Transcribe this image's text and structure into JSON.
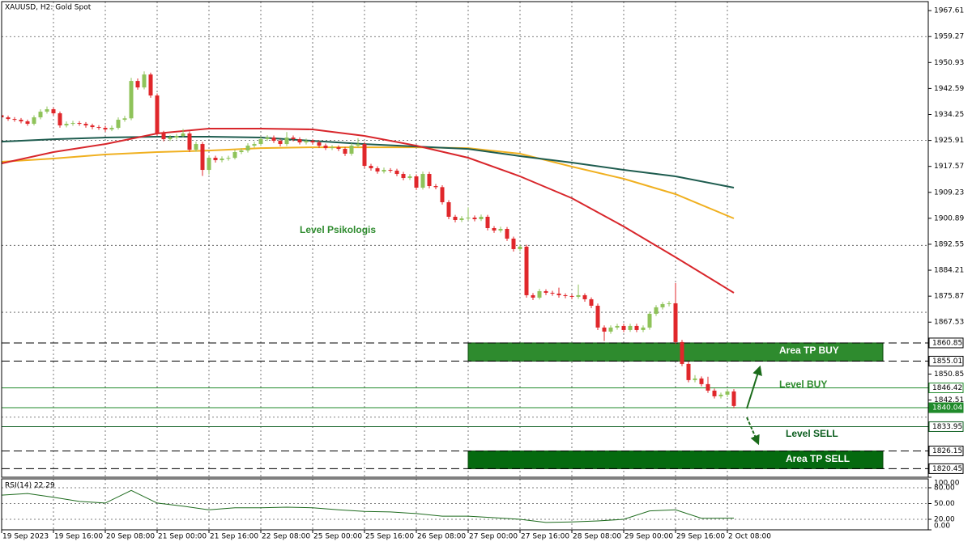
{
  "chart_data": {
    "type": "candlestick",
    "title": "XAUUSD, H2:  Gold Spot",
    "xlim": [
      0,
      143
    ],
    "xticks": [
      {
        "value": 0,
        "label": "19 Sep 2023"
      },
      {
        "value": 8,
        "label": "19 Sep 16:00"
      },
      {
        "value": 16,
        "label": "20 Sep 08:00"
      },
      {
        "value": 24,
        "label": "21 Sep 00:00"
      },
      {
        "value": 32,
        "label": "21 Sep 16:00"
      },
      {
        "value": 40,
        "label": "22 Sep 08:00"
      },
      {
        "value": 48,
        "label": "25 Sep 00:00"
      },
      {
        "value": 56,
        "label": "25 Sep 16:00"
      },
      {
        "value": 64,
        "label": "26 Sep 08:00"
      },
      {
        "value": 72,
        "label": "27 Sep 00:00"
      },
      {
        "value": 80,
        "label": "27 Sep 16:00"
      },
      {
        "value": 88,
        "label": "28 Sep 08:00"
      },
      {
        "value": 96,
        "label": "29 Sep 00:00"
      },
      {
        "value": 104,
        "label": "29 Sep 16:00"
      },
      {
        "value": 112,
        "label": "2 Oct 08:00"
      }
    ],
    "ylim": [
      1817.7,
      1970.5
    ],
    "yticks": [
      1967.61,
      1959.27,
      1950.93,
      1942.59,
      1934.25,
      1925.91,
      1917.57,
      1909.23,
      1900.89,
      1892.55,
      1884.21,
      1875.87,
      1867.53,
      1850.85,
      1842.51
    ],
    "up_color": "#8fc35a",
    "down_color": "#e0272b",
    "open": [
      1934.0,
      1933.32,
      1932.8,
      1932.55,
      1932.03,
      1931.25,
      1933.32,
      1935.14,
      1935.92,
      1934.62,
      1930.73,
      1931.25,
      1931.51,
      1931.25,
      1930.73,
      1930.21,
      1929.95,
      1929.43,
      1929.95,
      1932.55,
      1933.0,
      1945.01,
      1942.93,
      1947.09,
      1940.34,
      1928.13,
      1926.31,
      1926.83,
      1927.35,
      1928.13,
      1922.93,
      1924.75,
      1916.44,
      1920.34,
      1919.56,
      1920.08,
      1920.3,
      1922.16,
      1922.67,
      1924.23,
      1924.75,
      1926.31,
      1926.83,
      1925.79,
      1924.75,
      1926.83,
      1926.31,
      1925.27,
      1925.79,
      1925.27,
      1924.23,
      1923.45,
      1923.71,
      1923.19,
      1921.64,
      1924.23,
      1924.75,
      1917.74,
      1916.96,
      1915.92,
      1916.44,
      1916.2,
      1915.14,
      1913.84,
      1914.36,
      1910.73,
      1915.14,
      1911.25,
      1910.9,
      1906.05,
      1901.38,
      1900.34,
      1900.86,
      1901.1,
      1900.6,
      1901.38,
      1897.74,
      1896.96,
      1897.48,
      1894.36,
      1890.99,
      1891.77,
      1876.18,
      1875.4,
      1877.48,
      1876.96,
      1876.7,
      1876.18,
      1875.92,
      1875.66,
      1876.18,
      1874.88,
      1872.8,
      1865.79,
      1864.49,
      1865.79,
      1866.31,
      1865.01,
      1866.31,
      1865.01,
      1865.79,
      1870.21,
      1872.29,
      1873.32,
      1873.58,
      1861.12,
      1854.1,
      1848.91,
      1849.43,
      1847.61,
      1845.53,
      1843.71,
      1844.23,
      1845.27
    ],
    "high": [
      1934.6,
      1933.9,
      1933.4,
      1933.1,
      1932.6,
      1934.0,
      1935.9,
      1936.8,
      1936.5,
      1935.2,
      1932.0,
      1932.2,
      1932.1,
      1931.8,
      1931.3,
      1930.8,
      1930.6,
      1930.7,
      1933.3,
      1933.8,
      1946.0,
      1945.8,
      1948.1,
      1947.7,
      1941.0,
      1929.0,
      1927.6,
      1928.0,
      1929.6,
      1928.8,
      1925.5,
      1925.4,
      1921.1,
      1921.0,
      1920.8,
      1921.0,
      1922.9,
      1923.4,
      1925.0,
      1925.5,
      1927.1,
      1927.6,
      1927.5,
      1926.4,
      1928.6,
      1927.5,
      1926.9,
      1926.5,
      1926.4,
      1925.9,
      1924.9,
      1924.4,
      1924.3,
      1923.8,
      1925.0,
      1926.6,
      1925.4,
      1918.4,
      1917.6,
      1917.2,
      1917.0,
      1916.8,
      1915.8,
      1915.1,
      1915.0,
      1915.9,
      1915.8,
      1911.9,
      1911.5,
      1906.7,
      1902.0,
      1901.6,
      1904.4,
      1901.8,
      1902.1,
      1902.0,
      1898.4,
      1898.2,
      1898.1,
      1895.0,
      1892.5,
      1892.4,
      1876.9,
      1878.2,
      1878.1,
      1877.6,
      1878.6,
      1876.8,
      1876.5,
      1879.6,
      1876.8,
      1875.5,
      1873.5,
      1866.5,
      1866.5,
      1867.0,
      1867.0,
      1867.0,
      1867.0,
      1866.5,
      1870.9,
      1873.0,
      1874.0,
      1874.3,
      1880.1,
      1861.8,
      1854.8,
      1850.5,
      1850.1,
      1850.0,
      1846.2,
      1844.9,
      1846.0,
      1846.0
    ],
    "low": [
      1932.7,
      1932.2,
      1931.9,
      1931.4,
      1930.6,
      1930.7,
      1932.7,
      1934.5,
      1934.0,
      1930.0,
      1930.1,
      1930.6,
      1930.6,
      1930.0,
      1929.5,
      1929.3,
      1928.7,
      1928.9,
      1929.4,
      1931.9,
      1932.4,
      1942.2,
      1942.3,
      1939.6,
      1927.4,
      1925.6,
      1925.7,
      1926.2,
      1926.9,
      1922.2,
      1922.3,
      1914.5,
      1915.0,
      1918.8,
      1918.9,
      1919.4,
      1919.8,
      1921.5,
      1922.0,
      1923.6,
      1924.1,
      1925.7,
      1925.1,
      1924.0,
      1924.1,
      1925.6,
      1924.6,
      1924.6,
      1924.6,
      1923.5,
      1922.8,
      1922.8,
      1922.5,
      1920.9,
      1921.0,
      1923.6,
      1917.0,
      1916.2,
      1915.2,
      1915.3,
      1915.5,
      1914.4,
      1913.1,
      1913.2,
      1910.0,
      1910.1,
      1910.5,
      1910.2,
      1905.3,
      1900.6,
      1899.6,
      1899.7,
      1900.2,
      1899.9,
      1900.0,
      1897.0,
      1896.2,
      1896.3,
      1893.6,
      1890.2,
      1890.3,
      1875.4,
      1874.6,
      1874.8,
      1876.2,
      1876.0,
      1875.4,
      1875.2,
      1874.9,
      1875.0,
      1874.1,
      1872.0,
      1865.0,
      1861.5,
      1863.8,
      1865.1,
      1864.3,
      1864.4,
      1864.3,
      1864.3,
      1865.1,
      1869.5,
      1871.6,
      1872.6,
      1860.4,
      1853.4,
      1848.2,
      1848.2,
      1846.9,
      1844.8,
      1843.0,
      1843.0,
      1843.5,
      1839.9
    ],
    "close": [
      1933.32,
      1932.8,
      1932.55,
      1932.03,
      1931.25,
      1933.32,
      1935.14,
      1935.92,
      1934.62,
      1930.73,
      1931.25,
      1931.51,
      1931.25,
      1930.73,
      1930.21,
      1929.95,
      1929.43,
      1929.95,
      1932.55,
      1933.0,
      1945.01,
      1942.93,
      1947.09,
      1940.34,
      1928.13,
      1926.31,
      1926.83,
      1927.35,
      1928.13,
      1922.93,
      1924.75,
      1916.44,
      1920.34,
      1919.56,
      1920.08,
      1920.3,
      1922.16,
      1922.67,
      1924.23,
      1924.75,
      1926.31,
      1926.83,
      1925.79,
      1924.75,
      1926.83,
      1926.31,
      1925.27,
      1925.79,
      1925.27,
      1924.23,
      1923.45,
      1923.71,
      1923.19,
      1921.64,
      1924.23,
      1924.75,
      1917.74,
      1916.96,
      1915.92,
      1916.44,
      1916.2,
      1915.14,
      1913.84,
      1914.36,
      1910.73,
      1915.14,
      1911.25,
      1910.9,
      1906.05,
      1901.38,
      1900.34,
      1900.86,
      1901.1,
      1900.6,
      1901.38,
      1897.74,
      1896.96,
      1897.48,
      1894.36,
      1890.99,
      1891.77,
      1876.18,
      1875.4,
      1877.48,
      1876.96,
      1876.7,
      1876.18,
      1875.92,
      1875.66,
      1876.18,
      1874.88,
      1872.8,
      1865.79,
      1864.49,
      1865.79,
      1866.31,
      1865.01,
      1866.31,
      1865.01,
      1865.79,
      1870.21,
      1872.29,
      1873.32,
      1873.58,
      1861.12,
      1854.1,
      1848.91,
      1849.43,
      1847.61,
      1845.53,
      1843.71,
      1844.23,
      1845.27,
      1840.6
    ],
    "moving_averages": [
      {
        "color": "#f0b020",
        "x": [
          0,
          8,
          16,
          24,
          32,
          40,
          48,
          56,
          64,
          72,
          80,
          88,
          96,
          104,
          113
        ],
        "values": [
          1919.04,
          1920.08,
          1921.38,
          1922.16,
          1922.67,
          1923.45,
          1923.71,
          1923.71,
          1923.71,
          1923.45,
          1921.64,
          1917.48,
          1913.58,
          1908.65,
          1900.86
        ]
      },
      {
        "color": "#1e5c4f",
        "x": [
          0,
          8,
          16,
          24,
          32,
          40,
          48,
          56,
          64,
          72,
          80,
          88,
          96,
          104,
          113
        ],
        "values": [
          1925.53,
          1926.31,
          1926.83,
          1927.09,
          1927.09,
          1926.83,
          1925.79,
          1924.75,
          1923.97,
          1923.19,
          1920.86,
          1918.78,
          1916.44,
          1914.36,
          1910.73
        ]
      },
      {
        "color": "#d8262b",
        "x": [
          0,
          8,
          16,
          24,
          32,
          40,
          48,
          56,
          64,
          72,
          80,
          88,
          96,
          104,
          113
        ],
        "values": [
          1918.52,
          1922.16,
          1924.75,
          1928.13,
          1929.69,
          1929.69,
          1929.43,
          1927.35,
          1924.23,
          1920.34,
          1914.36,
          1907.35,
          1898.26,
          1888.39,
          1876.96
        ]
      }
    ],
    "grid_levels": [
      1959.27,
      1925.91,
      1892.2,
      1870.7,
      1837.0
    ],
    "levels": [
      {
        "value": 1860.85,
        "style": "dashed",
        "color": "#000000"
      },
      {
        "value": 1855.01,
        "style": "dashed",
        "color": "#000000"
      },
      {
        "value": 1846.42,
        "style": "solid",
        "color": "#1f8a2a"
      },
      {
        "value": 1840.04,
        "style": "solid",
        "color": "#1f8a2a",
        "highlight": true
      },
      {
        "value": 1833.95,
        "style": "solid",
        "color": "#0b5d1e"
      },
      {
        "value": 1826.15,
        "style": "dashed",
        "color": "#000000"
      },
      {
        "value": 1820.45,
        "style": "dashed",
        "color": "#000000"
      }
    ],
    "zones": [
      {
        "label": "Area TP BUY",
        "from": 1860.85,
        "to": 1855.01,
        "x_range": [
          72,
          136
        ],
        "color": "#2e8b2e"
      },
      {
        "label": "Area TP SELL",
        "from": 1826.15,
        "to": 1820.45,
        "x_range": [
          72,
          136
        ],
        "color": "#056a0f"
      }
    ],
    "annotations": [
      "Level Psikologis",
      "Level BUY",
      "Level SELL"
    ],
    "indicator": {
      "title": "RSI(14) 22.29",
      "color": "#1e6b1e",
      "ylim": [
        0,
        100
      ],
      "yticks": [
        {
          "value": 100,
          "label": "100.00"
        },
        {
          "value": 80,
          "label": "80.00"
        },
        {
          "value": 50,
          "label": "50.00"
        },
        {
          "value": 20,
          "label": "20.00"
        },
        {
          "value": 0,
          "label": "0.00"
        }
      ],
      "x": [
        0,
        4,
        8,
        12,
        16,
        20,
        24,
        28,
        32,
        36,
        40,
        44,
        48,
        52,
        56,
        60,
        64,
        68,
        72,
        76,
        80,
        84,
        88,
        92,
        96,
        100,
        104,
        108,
        113
      ],
      "values": [
        66,
        69,
        62,
        54,
        51,
        75,
        51,
        45,
        38,
        42,
        42,
        43,
        42,
        38,
        35,
        34,
        31,
        26,
        26,
        23,
        20,
        14,
        15,
        17,
        20,
        36,
        38,
        22,
        22.29
      ]
    }
  }
}
